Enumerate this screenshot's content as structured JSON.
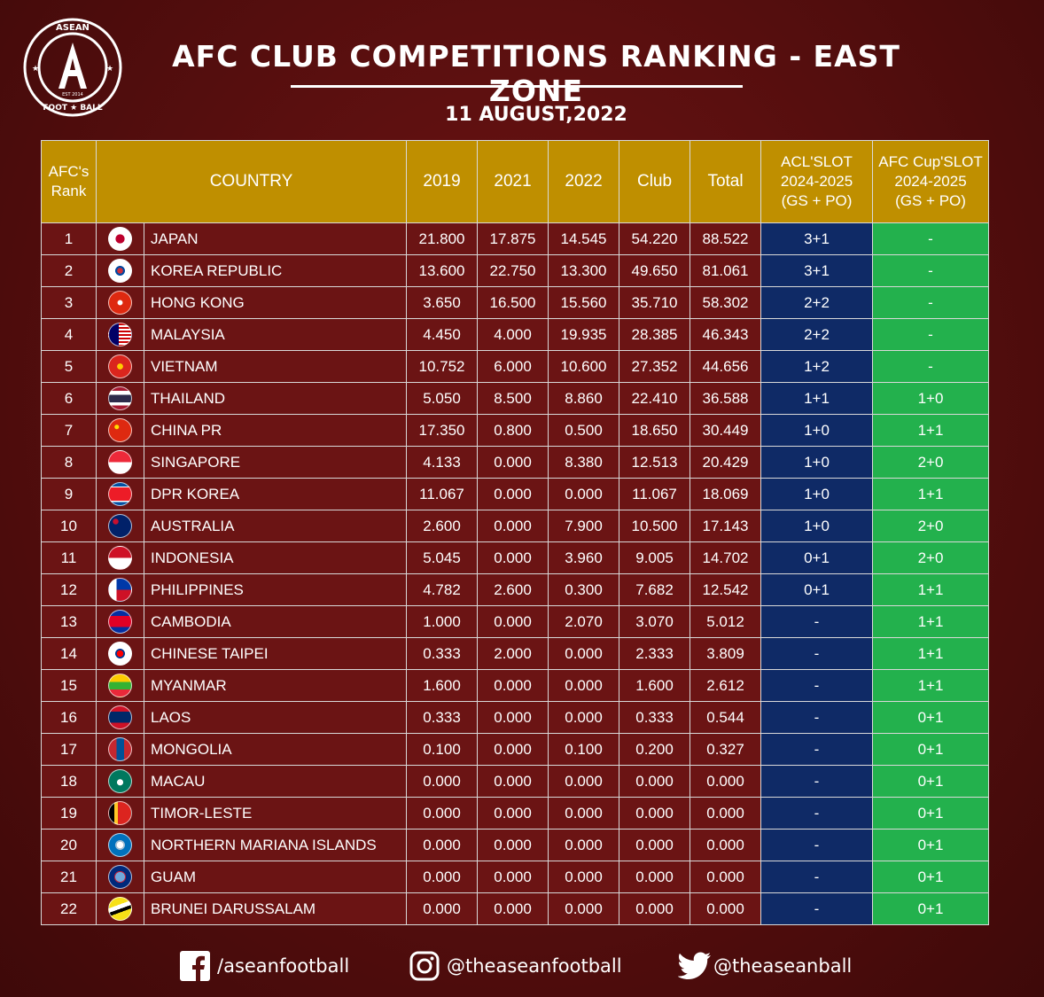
{
  "logo": {
    "top_text": "ASEAN",
    "letter": "A",
    "est": "EST 2014",
    "bottom_text": "FOOT ★ BALL"
  },
  "title": "AFC CLUB COMPETITIONS RANKING - EAST ZONE",
  "date": "11 AUGUST,2022",
  "colors": {
    "background": "#5a0f0f",
    "header": "#bf8f00",
    "acl": "#0f2a66",
    "afc_cup": "#23b14d"
  },
  "headers": {
    "rank": [
      "AFC's",
      "Rank"
    ],
    "country": "COUNTRY",
    "y2019": "2019",
    "y2021": "2021",
    "y2022": "2022",
    "club": "Club",
    "total": "Total",
    "acl": [
      "ACL'SLOT",
      "2024-2025",
      "(GS + PO)"
    ],
    "cup": [
      "AFC Cup'SLOT",
      "2024-2025",
      "(GS + PO)"
    ]
  },
  "rows": [
    {
      "rank": "1",
      "flag": "japan-flag-icon",
      "country": "JAPAN",
      "y2019": "21.800",
      "y2021": "17.875",
      "y2022": "14.545",
      "club": "54.220",
      "total": "88.522",
      "acl": "3+1",
      "cup": "-"
    },
    {
      "rank": "2",
      "flag": "korea-republic-flag-icon",
      "country": "KOREA REPUBLIC",
      "y2019": "13.600",
      "y2021": "22.750",
      "y2022": "13.300",
      "club": "49.650",
      "total": "81.061",
      "acl": "3+1",
      "cup": "-"
    },
    {
      "rank": "3",
      "flag": "hong-kong-flag-icon",
      "country": "HONG KONG",
      "y2019": "3.650",
      "y2021": "16.500",
      "y2022": "15.560",
      "club": "35.710",
      "total": "58.302",
      "acl": "2+2",
      "cup": "-"
    },
    {
      "rank": "4",
      "flag": "malaysia-flag-icon",
      "country": "MALAYSIA",
      "y2019": "4.450",
      "y2021": "4.000",
      "y2022": "19.935",
      "club": "28.385",
      "total": "46.343",
      "acl": "2+2",
      "cup": "-"
    },
    {
      "rank": "5",
      "flag": "vietnam-flag-icon",
      "country": "VIETNAM",
      "y2019": "10.752",
      "y2021": "6.000",
      "y2022": "10.600",
      "club": "27.352",
      "total": "44.656",
      "acl": "1+2",
      "cup": "-"
    },
    {
      "rank": "6",
      "flag": "thailand-flag-icon",
      "country": "THAILAND",
      "y2019": "5.050",
      "y2021": "8.500",
      "y2022": "8.860",
      "club": "22.410",
      "total": "36.588",
      "acl": "1+1",
      "cup": "1+0"
    },
    {
      "rank": "7",
      "flag": "china-flag-icon",
      "country": "CHINA PR",
      "y2019": "17.350",
      "y2021": "0.800",
      "y2022": "0.500",
      "club": "18.650",
      "total": "30.449",
      "acl": "1+0",
      "cup": "1+1"
    },
    {
      "rank": "8",
      "flag": "singapore-flag-icon",
      "country": "SINGAPORE",
      "y2019": "4.133",
      "y2021": "0.000",
      "y2022": "8.380",
      "club": "12.513",
      "total": "20.429",
      "acl": "1+0",
      "cup": "2+0"
    },
    {
      "rank": "9",
      "flag": "dpr-korea-flag-icon",
      "country": "DPR KOREA",
      "y2019": "11.067",
      "y2021": "0.000",
      "y2022": "0.000",
      "club": "11.067",
      "total": "18.069",
      "acl": "1+0",
      "cup": "1+1"
    },
    {
      "rank": "10",
      "flag": "australia-flag-icon",
      "country": "AUSTRALIA",
      "y2019": "2.600",
      "y2021": "0.000",
      "y2022": "7.900",
      "club": "10.500",
      "total": "17.143",
      "acl": "1+0",
      "cup": "2+0"
    },
    {
      "rank": "11",
      "flag": "indonesia-flag-icon",
      "country": "INDONESIA",
      "y2019": "5.045",
      "y2021": "0.000",
      "y2022": "3.960",
      "club": "9.005",
      "total": "14.702",
      "acl": "0+1",
      "cup": "2+0"
    },
    {
      "rank": "12",
      "flag": "philippines-flag-icon",
      "country": "PHILIPPINES",
      "y2019": "4.782",
      "y2021": "2.600",
      "y2022": "0.300",
      "club": "7.682",
      "total": "12.542",
      "acl": "0+1",
      "cup": "1+1"
    },
    {
      "rank": "13",
      "flag": "cambodia-flag-icon",
      "country": "CAMBODIA",
      "y2019": "1.000",
      "y2021": "0.000",
      "y2022": "2.070",
      "club": "3.070",
      "total": "5.012",
      "acl": "-",
      "cup": "1+1"
    },
    {
      "rank": "14",
      "flag": "chinese-taipei-flag-icon",
      "country": "CHINESE TAIPEI",
      "y2019": "0.333",
      "y2021": "2.000",
      "y2022": "0.000",
      "club": "2.333",
      "total": "3.809",
      "acl": "-",
      "cup": "1+1"
    },
    {
      "rank": "15",
      "flag": "myanmar-flag-icon",
      "country": "MYANMAR",
      "y2019": "1.600",
      "y2021": "0.000",
      "y2022": "0.000",
      "club": "1.600",
      "total": "2.612",
      "acl": "-",
      "cup": "1+1"
    },
    {
      "rank": "16",
      "flag": "laos-flag-icon",
      "country": "LAOS",
      "y2019": "0.333",
      "y2021": "0.000",
      "y2022": "0.000",
      "club": "0.333",
      "total": "0.544",
      "acl": "-",
      "cup": "0+1"
    },
    {
      "rank": "17",
      "flag": "mongolia-flag-icon",
      "country": "MONGOLIA",
      "y2019": "0.100",
      "y2021": "0.000",
      "y2022": "0.100",
      "club": "0.200",
      "total": "0.327",
      "acl": "-",
      "cup": "0+1"
    },
    {
      "rank": "18",
      "flag": "macau-flag-icon",
      "country": "MACAU",
      "y2019": "0.000",
      "y2021": "0.000",
      "y2022": "0.000",
      "club": "0.000",
      "total": "0.000",
      "acl": "-",
      "cup": "0+1"
    },
    {
      "rank": "19",
      "flag": "timor-leste-flag-icon",
      "country": "TIMOR-LESTE",
      "y2019": "0.000",
      "y2021": "0.000",
      "y2022": "0.000",
      "club": "0.000",
      "total": "0.000",
      "acl": "-",
      "cup": "0+1"
    },
    {
      "rank": "20",
      "flag": "northern-mariana-islands-flag-icon",
      "country": "NORTHERN MARIANA ISLANDS",
      "y2019": "0.000",
      "y2021": "0.000",
      "y2022": "0.000",
      "club": "0.000",
      "total": "0.000",
      "acl": "-",
      "cup": "0+1"
    },
    {
      "rank": "21",
      "flag": "guam-flag-icon",
      "country": "GUAM",
      "y2019": "0.000",
      "y2021": "0.000",
      "y2022": "0.000",
      "club": "0.000",
      "total": "0.000",
      "acl": "-",
      "cup": "0+1"
    },
    {
      "rank": "22",
      "flag": "brunei-flag-icon",
      "country": "BRUNEI DARUSSALAM",
      "y2019": "0.000",
      "y2021": "0.000",
      "y2022": "0.000",
      "club": "0.000",
      "total": "0.000",
      "acl": "-",
      "cup": "0+1"
    }
  ],
  "footer": {
    "facebook": {
      "icon": "facebook-icon",
      "handle": "/aseanfootball"
    },
    "instagram": {
      "icon": "instagram-icon",
      "handle": "@theaseanfootball"
    },
    "twitter": {
      "icon": "twitter-icon",
      "handle": "@theaseanball"
    }
  }
}
